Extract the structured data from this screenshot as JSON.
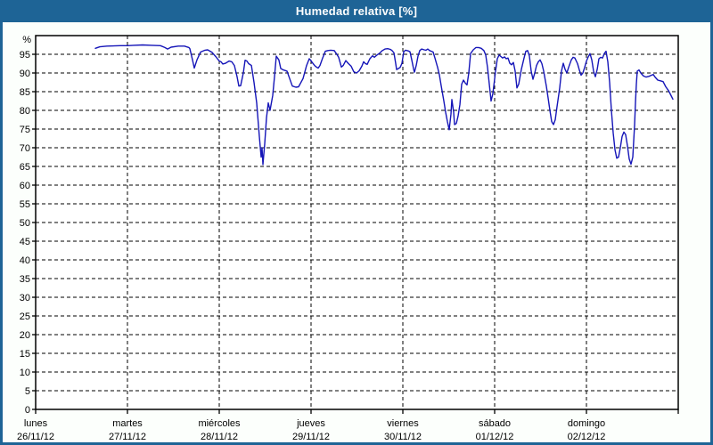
{
  "header": {
    "title": "Humedad relativa [%]"
  },
  "colors": {
    "titlebar_bg": "#1e6496",
    "titlebar_text": "#ffffff",
    "page_border": "#1e6496",
    "content_bg": "#fcfffc",
    "plot_bg": "#ffffff",
    "grid": "#000000",
    "axis": "#000000",
    "line": "#1515b8"
  },
  "chart_data": {
    "type": "line",
    "title": "Humedad relativa [%]",
    "ylabel": "%",
    "ylim": [
      0,
      100
    ],
    "ytick_step": 5,
    "ytick_min": 0,
    "ytick_max": 95,
    "grid": "dashed-horizontal-and-vertical",
    "legend": "none",
    "x_axis": {
      "unit": "days",
      "range_days": [
        0,
        7
      ],
      "day_labels": [
        {
          "name": "lunes",
          "date": "26/11/12"
        },
        {
          "name": "martes",
          "date": "27/11/12"
        },
        {
          "name": "miércoles",
          "date": "28/11/12"
        },
        {
          "name": "jueves",
          "date": "29/11/12"
        },
        {
          "name": "viernes",
          "date": "30/11/12"
        },
        {
          "name": "sábado",
          "date": "01/12/12"
        },
        {
          "name": "domingo",
          "date": "02/12/12"
        }
      ]
    },
    "series": [
      {
        "name": "Humedad relativa [%]",
        "points": [
          [
            0.65,
            96.6
          ],
          [
            0.699,
            97.0
          ],
          [
            0.777,
            97.2
          ],
          [
            0.922,
            97.3
          ],
          [
            1.0,
            97.3
          ],
          [
            1.068,
            97.4
          ],
          [
            1.165,
            97.5
          ],
          [
            1.262,
            97.4
          ],
          [
            1.359,
            97.3
          ],
          [
            1.408,
            96.8
          ],
          [
            1.437,
            96.4
          ],
          [
            1.476,
            96.9
          ],
          [
            1.553,
            97.2
          ],
          [
            1.621,
            97.2
          ],
          [
            1.67,
            96.8
          ],
          [
            1.68,
            96.5
          ],
          [
            1.709,
            93.5
          ],
          [
            1.728,
            91.3
          ],
          [
            1.757,
            93.5
          ],
          [
            1.796,
            95.6
          ],
          [
            1.845,
            96.1
          ],
          [
            1.874,
            96.2
          ],
          [
            1.922,
            95.5
          ],
          [
            1.961,
            94.4
          ],
          [
            2.0,
            93.2
          ],
          [
            2.019,
            93.0
          ],
          [
            2.039,
            92.4
          ],
          [
            2.068,
            92.6
          ],
          [
            2.107,
            93.2
          ],
          [
            2.136,
            93.0
          ],
          [
            2.165,
            92.0
          ],
          [
            2.194,
            89.0
          ],
          [
            2.214,
            86.5
          ],
          [
            2.233,
            86.6
          ],
          [
            2.262,
            90.0
          ],
          [
            2.282,
            93.4
          ],
          [
            2.301,
            93.2
          ],
          [
            2.32,
            92.5
          ],
          [
            2.35,
            92.0
          ],
          [
            2.379,
            87.5
          ],
          [
            2.408,
            82.0
          ],
          [
            2.437,
            73.0
          ],
          [
            2.456,
            67.5
          ],
          [
            2.466,
            70.0
          ],
          [
            2.476,
            65.5
          ],
          [
            2.495,
            71.0
          ],
          [
            2.515,
            78.0
          ],
          [
            2.534,
            82.0
          ],
          [
            2.553,
            80.0
          ],
          [
            2.583,
            84.0
          ],
          [
            2.602,
            89.0
          ],
          [
            2.621,
            94.5
          ],
          [
            2.65,
            93.5
          ],
          [
            2.67,
            91.2
          ],
          [
            2.699,
            90.8
          ],
          [
            2.738,
            90.5
          ],
          [
            2.767,
            88.5
          ],
          [
            2.796,
            86.5
          ],
          [
            2.835,
            86.2
          ],
          [
            2.864,
            86.3
          ],
          [
            2.913,
            88.5
          ],
          [
            2.951,
            92.0
          ],
          [
            2.981,
            93.8
          ],
          [
            3.0,
            93.3
          ],
          [
            3.01,
            92.9
          ],
          [
            3.039,
            92.0
          ],
          [
            3.058,
            91.6
          ],
          [
            3.078,
            91.3
          ],
          [
            3.097,
            92.0
          ],
          [
            3.126,
            94.0
          ],
          [
            3.155,
            95.8
          ],
          [
            3.184,
            96.0
          ],
          [
            3.214,
            96.1
          ],
          [
            3.252,
            96.0
          ],
          [
            3.281,
            95.0
          ],
          [
            3.301,
            94.2
          ],
          [
            3.33,
            91.6
          ],
          [
            3.35,
            92.0
          ],
          [
            3.379,
            93.3
          ],
          [
            3.408,
            92.5
          ],
          [
            3.437,
            91.8
          ],
          [
            3.466,
            90.3
          ],
          [
            3.495,
            90.0
          ],
          [
            3.524,
            90.6
          ],
          [
            3.553,
            91.8
          ],
          [
            3.573,
            93.0
          ],
          [
            3.592,
            92.5
          ],
          [
            3.612,
            92.3
          ],
          [
            3.641,
            93.8
          ],
          [
            3.67,
            94.6
          ],
          [
            3.689,
            94.2
          ],
          [
            3.718,
            94.8
          ],
          [
            3.748,
            95.3
          ],
          [
            3.777,
            96.0
          ],
          [
            3.806,
            96.4
          ],
          [
            3.835,
            96.5
          ],
          [
            3.864,
            96.3
          ],
          [
            3.883,
            96.0
          ],
          [
            3.903,
            95.4
          ],
          [
            3.922,
            92.5
          ],
          [
            3.932,
            90.9
          ],
          [
            3.951,
            91.2
          ],
          [
            3.971,
            91.5
          ],
          [
            3.99,
            92.6
          ],
          [
            4.01,
            95.7
          ],
          [
            4.029,
            96.1
          ],
          [
            4.058,
            95.9
          ],
          [
            4.078,
            95.7
          ],
          [
            4.097,
            93.5
          ],
          [
            4.117,
            91.0
          ],
          [
            4.126,
            90.2
          ],
          [
            4.146,
            92.0
          ],
          [
            4.165,
            94.5
          ],
          [
            4.184,
            96.0
          ],
          [
            4.204,
            96.4
          ],
          [
            4.233,
            96.2
          ],
          [
            4.252,
            96.1
          ],
          [
            4.272,
            96.4
          ],
          [
            4.291,
            96.0
          ],
          [
            4.311,
            95.8
          ],
          [
            4.33,
            95.6
          ],
          [
            4.35,
            94.0
          ],
          [
            4.379,
            91.5
          ],
          [
            4.398,
            89.5
          ],
          [
            4.417,
            86.6
          ],
          [
            4.447,
            82.5
          ],
          [
            4.466,
            79.5
          ],
          [
            4.485,
            77.0
          ],
          [
            4.505,
            74.8
          ],
          [
            4.524,
            79.0
          ],
          [
            4.534,
            82.9
          ],
          [
            4.553,
            79.5
          ],
          [
            4.563,
            76.2
          ],
          [
            4.583,
            76.5
          ],
          [
            4.602,
            78.5
          ],
          [
            4.621,
            81.5
          ],
          [
            4.641,
            87.0
          ],
          [
            4.66,
            88.1
          ],
          [
            4.68,
            87.3
          ],
          [
            4.699,
            86.8
          ],
          [
            4.718,
            90.0
          ],
          [
            4.738,
            95.2
          ],
          [
            4.767,
            96.2
          ],
          [
            4.796,
            96.8
          ],
          [
            4.825,
            96.8
          ],
          [
            4.854,
            96.6
          ],
          [
            4.883,
            96.0
          ],
          [
            4.903,
            94.8
          ],
          [
            4.922,
            91.5
          ],
          [
            4.942,
            87.0
          ],
          [
            4.961,
            82.5
          ],
          [
            4.981,
            84.5
          ],
          [
            4.99,
            86.4
          ],
          [
            5.01,
            90.5
          ],
          [
            5.029,
            93.8
          ],
          [
            5.049,
            94.8
          ],
          [
            5.068,
            94.4
          ],
          [
            5.087,
            94.0
          ],
          [
            5.107,
            94.3
          ],
          [
            5.126,
            93.8
          ],
          [
            5.146,
            94.0
          ],
          [
            5.165,
            92.6
          ],
          [
            5.184,
            92.2
          ],
          [
            5.204,
            92.8
          ],
          [
            5.223,
            90.5
          ],
          [
            5.243,
            86.0
          ],
          [
            5.262,
            87.0
          ],
          [
            5.291,
            91.0
          ],
          [
            5.32,
            94.0
          ],
          [
            5.34,
            95.8
          ],
          [
            5.359,
            96.0
          ],
          [
            5.379,
            94.5
          ],
          [
            5.398,
            90.5
          ],
          [
            5.417,
            88.3
          ],
          [
            5.437,
            90.0
          ],
          [
            5.456,
            92.0
          ],
          [
            5.476,
            93.0
          ],
          [
            5.495,
            93.5
          ],
          [
            5.515,
            92.5
          ],
          [
            5.534,
            90.5
          ],
          [
            5.563,
            86.5
          ],
          [
            5.583,
            83.3
          ],
          [
            5.602,
            80.0
          ],
          [
            5.621,
            77.0
          ],
          [
            5.641,
            76.2
          ],
          [
            5.66,
            77.5
          ],
          [
            5.68,
            81.0
          ],
          [
            5.709,
            86.0
          ],
          [
            5.728,
            90.5
          ],
          [
            5.748,
            92.6
          ],
          [
            5.767,
            91.0
          ],
          [
            5.786,
            90.0
          ],
          [
            5.806,
            91.5
          ],
          [
            5.835,
            93.5
          ],
          [
            5.854,
            94.2
          ],
          [
            5.874,
            94.0
          ],
          [
            5.903,
            92.5
          ],
          [
            5.922,
            90.8
          ],
          [
            5.942,
            89.4
          ],
          [
            5.961,
            90.0
          ],
          [
            5.981,
            91.5
          ],
          [
            6.0,
            93.2
          ],
          [
            6.019,
            94.3
          ],
          [
            6.039,
            95.2
          ],
          [
            6.058,
            93.5
          ],
          [
            6.078,
            90.5
          ],
          [
            6.097,
            89.0
          ],
          [
            6.117,
            91.0
          ],
          [
            6.136,
            93.8
          ],
          [
            6.155,
            94.2
          ],
          [
            6.175,
            94.0
          ],
          [
            6.194,
            95.2
          ],
          [
            6.214,
            95.8
          ],
          [
            6.233,
            93.0
          ],
          [
            6.252,
            87.5
          ],
          [
            6.272,
            80.0
          ],
          [
            6.291,
            74.0
          ],
          [
            6.311,
            69.5
          ],
          [
            6.33,
            67.2
          ],
          [
            6.35,
            67.5
          ],
          [
            6.369,
            70.0
          ],
          [
            6.388,
            73.0
          ],
          [
            6.408,
            74.2
          ],
          [
            6.427,
            73.5
          ],
          [
            6.447,
            70.5
          ],
          [
            6.466,
            67.0
          ],
          [
            6.485,
            65.6
          ],
          [
            6.505,
            67.5
          ],
          [
            6.524,
            76.0
          ],
          [
            6.534,
            82.0
          ],
          [
            6.544,
            87.0
          ],
          [
            6.553,
            90.5
          ],
          [
            6.573,
            90.8
          ],
          [
            6.592,
            90.0
          ],
          [
            6.621,
            89.2
          ],
          [
            6.65,
            88.9
          ],
          [
            6.68,
            89.1
          ],
          [
            6.709,
            89.4
          ],
          [
            6.728,
            89.6
          ],
          [
            6.748,
            88.9
          ],
          [
            6.777,
            88.1
          ],
          [
            6.806,
            87.9
          ],
          [
            6.835,
            87.7
          ],
          [
            6.864,
            86.3
          ],
          [
            6.893,
            85.3
          ],
          [
            6.913,
            84.4
          ],
          [
            6.942,
            83.0
          ]
        ]
      }
    ]
  }
}
